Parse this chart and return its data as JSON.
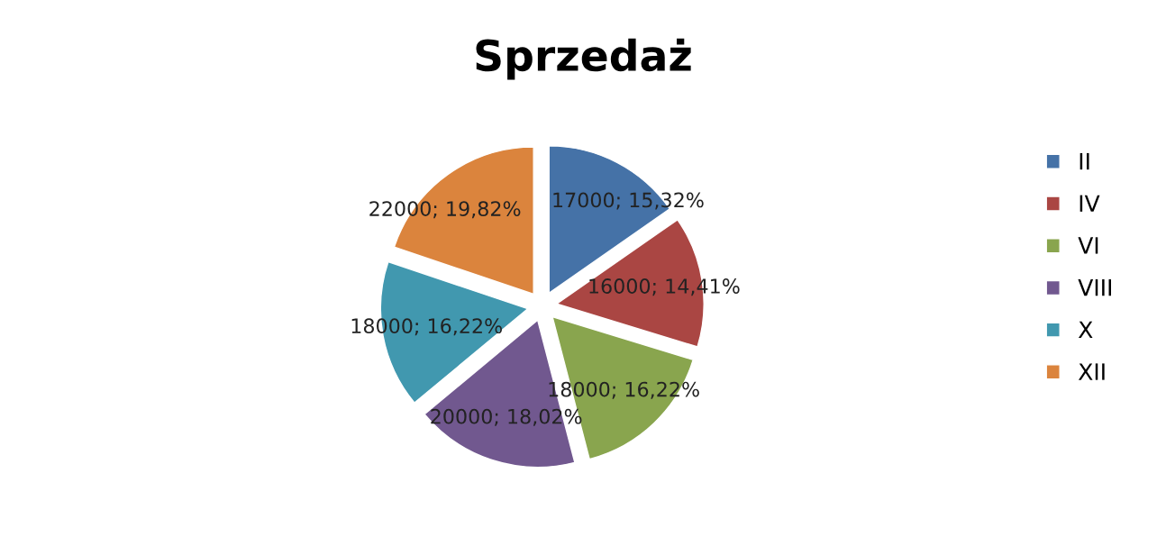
{
  "chart_data": {
    "type": "pie",
    "title": "Sprzedaż",
    "categories": [
      "II",
      "IV",
      "VI",
      "VIII",
      "X",
      "XII"
    ],
    "values": [
      17000,
      16000,
      18000,
      20000,
      18000,
      22000
    ],
    "colors": [
      "#4572a7",
      "#aa4643",
      "#89a54e",
      "#71588f",
      "#4198af",
      "#db843d"
    ],
    "value_labels": [
      "17000; 15,32%",
      "16000; 14,41%",
      "18000; 16,22%",
      "20000; 18,02%",
      "18000; 16,22%",
      "22000; 19,82%"
    ],
    "legend": "right"
  }
}
